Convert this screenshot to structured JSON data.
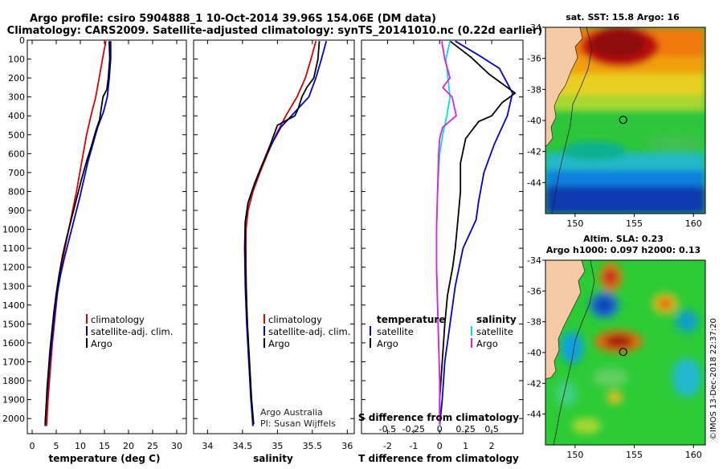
{
  "header": {
    "line1": "Argo profile: csiro 5904888_1 10-Oct-2014 39.96S 154.06E (DM data)",
    "line2": "Climatology: CARS2009. Satellite-adjusted climatology: synTS_20141010.nc (0.22d earlier)"
  },
  "colors": {
    "climatology": "#dd0000",
    "satellite": "#0000cc",
    "argo": "#000000",
    "sat_salinity": "#00e0e0",
    "argo_salinity": "#e020e0",
    "land": "#f5c9a4"
  },
  "chart_data": [
    {
      "type": "line",
      "title": "temperature",
      "xlabel": "temperature (deg C)",
      "ylabel": "",
      "xlim": [
        -1,
        32
      ],
      "ylim": [
        2080,
        0
      ],
      "xticks": [
        0,
        5,
        10,
        15,
        20,
        25,
        30
      ],
      "yticks": [
        0,
        100,
        200,
        300,
        400,
        500,
        600,
        700,
        800,
        900,
        1000,
        1100,
        1200,
        1300,
        1400,
        1500,
        1600,
        1700,
        1800,
        1900,
        2000
      ],
      "legend": [
        "climatology",
        "satellite-adj. clim.",
        "Argo"
      ],
      "series": [
        {
          "name": "climatology",
          "color": "#dd0000",
          "points": [
            [
              15.3,
              5
            ],
            [
              14.6,
              100
            ],
            [
              13.9,
              200
            ],
            [
              13.2,
              300
            ],
            [
              12.2,
              400
            ],
            [
              11.3,
              500
            ],
            [
              10.6,
              600
            ],
            [
              9.9,
              700
            ],
            [
              9.2,
              800
            ],
            [
              8.4,
              900
            ],
            [
              7.6,
              1000
            ],
            [
              6.8,
              1100
            ],
            [
              6.0,
              1200
            ],
            [
              5.4,
              1300
            ],
            [
              5.0,
              1400
            ],
            [
              4.6,
              1500
            ],
            [
              4.2,
              1600
            ],
            [
              3.9,
              1700
            ],
            [
              3.6,
              1800
            ],
            [
              3.3,
              1900
            ],
            [
              3.0,
              2040
            ]
          ]
        },
        {
          "name": "satellite-adj. clim.",
          "color": "#0000cc",
          "points": [
            [
              16.3,
              5
            ],
            [
              16.3,
              100
            ],
            [
              16.0,
              200
            ],
            [
              15.6,
              300
            ],
            [
              14.8,
              380
            ],
            [
              13.6,
              460
            ],
            [
              12.6,
              550
            ],
            [
              11.6,
              640
            ],
            [
              10.7,
              740
            ],
            [
              9.8,
              840
            ],
            [
              8.8,
              940
            ],
            [
              7.8,
              1040
            ],
            [
              6.8,
              1140
            ],
            [
              5.9,
              1240
            ],
            [
              5.2,
              1340
            ],
            [
              4.7,
              1440
            ],
            [
              4.3,
              1540
            ],
            [
              3.9,
              1640
            ],
            [
              3.5,
              1740
            ],
            [
              3.2,
              1840
            ],
            [
              2.9,
              1940
            ],
            [
              2.7,
              2040
            ]
          ]
        },
        {
          "name": "Argo",
          "color": "#000000",
          "points": [
            [
              16.0,
              5
            ],
            [
              16.1,
              100
            ],
            [
              15.8,
              200
            ],
            [
              15.5,
              260
            ],
            [
              14.7,
              300
            ],
            [
              14.4,
              350
            ],
            [
              14.0,
              420
            ],
            [
              13.2,
              480
            ],
            [
              12.3,
              560
            ],
            [
              11.3,
              640
            ],
            [
              10.2,
              740
            ],
            [
              9.2,
              840
            ],
            [
              8.2,
              940
            ],
            [
              7.2,
              1040
            ],
            [
              6.3,
              1140
            ],
            [
              5.6,
              1240
            ],
            [
              5.0,
              1340
            ],
            [
              4.5,
              1440
            ],
            [
              4.1,
              1540
            ],
            [
              3.7,
              1640
            ],
            [
              3.4,
              1740
            ],
            [
              3.1,
              1840
            ],
            [
              2.9,
              1940
            ],
            [
              2.7,
              2030
            ]
          ]
        }
      ]
    },
    {
      "type": "line",
      "title": "salinity",
      "xlabel": "salinity",
      "ylabel": "",
      "xlim": [
        33.8,
        36.1
      ],
      "ylim": [
        2080,
        0
      ],
      "xticks": [
        34,
        34.5,
        35,
        35.5,
        36
      ],
      "xticklabels": [
        "34",
        "34.5",
        "35",
        "35.5",
        "36"
      ],
      "legend": [
        "climatology",
        "satellite-adj. clim.",
        "Argo"
      ],
      "annotation": [
        "Argo Australia",
        "PI: Susan Wijffels"
      ],
      "series": [
        {
          "name": "climatology",
          "color": "#dd0000",
          "points": [
            [
              35.55,
              5
            ],
            [
              35.48,
              100
            ],
            [
              35.4,
              200
            ],
            [
              35.28,
              300
            ],
            [
              35.12,
              400
            ],
            [
              34.98,
              500
            ],
            [
              34.86,
              600
            ],
            [
              34.75,
              700
            ],
            [
              34.65,
              800
            ],
            [
              34.58,
              900
            ],
            [
              34.55,
              1000
            ],
            [
              34.55,
              1200
            ],
            [
              34.56,
              1400
            ],
            [
              34.58,
              1600
            ],
            [
              34.61,
              1800
            ],
            [
              34.65,
              2040
            ]
          ]
        },
        {
          "name": "satellite-adj. clim.",
          "color": "#0000cc",
          "points": [
            [
              35.7,
              5
            ],
            [
              35.63,
              100
            ],
            [
              35.55,
              200
            ],
            [
              35.45,
              300
            ],
            [
              35.25,
              380
            ],
            [
              35.05,
              460
            ],
            [
              34.9,
              560
            ],
            [
              34.78,
              660
            ],
            [
              34.67,
              760
            ],
            [
              34.58,
              860
            ],
            [
              34.54,
              960
            ],
            [
              34.53,
              1100
            ],
            [
              34.54,
              1300
            ],
            [
              34.56,
              1500
            ],
            [
              34.59,
              1700
            ],
            [
              34.62,
              1900
            ],
            [
              34.65,
              2040
            ]
          ]
        },
        {
          "name": "Argo",
          "color": "#000000",
          "points": [
            [
              35.6,
              5
            ],
            [
              35.58,
              100
            ],
            [
              35.52,
              200
            ],
            [
              35.42,
              250
            ],
            [
              35.35,
              300
            ],
            [
              35.3,
              360
            ],
            [
              35.25,
              400
            ],
            [
              35.0,
              450
            ],
            [
              34.9,
              550
            ],
            [
              34.78,
              660
            ],
            [
              34.67,
              760
            ],
            [
              34.58,
              860
            ],
            [
              34.54,
              960
            ],
            [
              34.54,
              1100
            ],
            [
              34.55,
              1300
            ],
            [
              34.57,
              1500
            ],
            [
              34.6,
              1700
            ],
            [
              34.63,
              1900
            ],
            [
              34.66,
              2030
            ]
          ]
        }
      ]
    },
    {
      "type": "line",
      "title": "differences",
      "xlabel": "T difference from climatology",
      "xlabel2": "S difference from climatology",
      "ylabel": "",
      "xlim": [
        -3,
        3.2
      ],
      "ylim": [
        2080,
        0
      ],
      "xticks": [
        -2,
        -1,
        0,
        1,
        2
      ],
      "xticks_s": [
        -0.5,
        -0.25,
        0,
        0.25,
        0.5
      ],
      "xticklabels_s": [
        "-0.5",
        "-0.25",
        "0",
        "0.25",
        "0.5"
      ],
      "s_scale": 4,
      "legend_temperature": {
        "title": "temperature",
        "items": [
          "satellite",
          "Argo"
        ]
      },
      "legend_salinity": {
        "title": "salinity",
        "items": [
          "satellite",
          "Argo"
        ]
      },
      "series": [
        {
          "name": "temperature satellite",
          "color": "#0000cc",
          "points": [
            [
              0.6,
              5
            ],
            [
              1.5,
              80
            ],
            [
              2.3,
              150
            ],
            [
              2.8,
              280
            ],
            [
              2.6,
              400
            ],
            [
              2.1,
              550
            ],
            [
              1.7,
              700
            ],
            [
              1.5,
              850
            ],
            [
              1.4,
              950
            ],
            [
              0.9,
              1100
            ],
            [
              0.6,
              1300
            ],
            [
              0.4,
              1500
            ],
            [
              0.2,
              1700
            ],
            [
              0.1,
              1900
            ],
            [
              0.0,
              2040
            ]
          ]
        },
        {
          "name": "temperature Argo",
          "color": "#000000",
          "points": [
            [
              0.4,
              5
            ],
            [
              1.2,
              90
            ],
            [
              1.9,
              180
            ],
            [
              2.9,
              280
            ],
            [
              2.4,
              330
            ],
            [
              2.0,
              400
            ],
            [
              1.5,
              430
            ],
            [
              1.0,
              520
            ],
            [
              0.8,
              650
            ],
            [
              0.8,
              800
            ],
            [
              0.7,
              950
            ],
            [
              0.6,
              1100
            ],
            [
              0.5,
              1200
            ],
            [
              0.3,
              1350
            ],
            [
              0.2,
              1500
            ],
            [
              0.1,
              1700
            ],
            [
              0.0,
              1900
            ],
            [
              0.0,
              2030
            ]
          ]
        },
        {
          "name": "salinity satellite",
          "color": "#00e0e0",
          "points": [
            [
              0.1,
              5
            ],
            [
              0.06,
              100
            ],
            [
              0.08,
              200
            ],
            [
              0.1,
              300
            ],
            [
              0.07,
              400
            ],
            [
              0.03,
              500
            ],
            [
              0.0,
              600
            ],
            [
              -0.02,
              800
            ],
            [
              -0.03,
              1000
            ],
            [
              -0.03,
              1200
            ],
            [
              -0.02,
              1400
            ],
            [
              -0.01,
              1600
            ],
            [
              0.0,
              1800
            ],
            [
              0.0,
              2040
            ]
          ]
        },
        {
          "name": "salinity Argo",
          "color": "#e020e0",
          "points": [
            [
              0.02,
              5
            ],
            [
              0.05,
              100
            ],
            [
              0.1,
              200
            ],
            [
              0.03,
              250
            ],
            [
              0.12,
              300
            ],
            [
              0.16,
              400
            ],
            [
              0.03,
              460
            ],
            [
              0.0,
              520
            ],
            [
              -0.01,
              600
            ],
            [
              -0.02,
              800
            ],
            [
              -0.03,
              1000
            ],
            [
              -0.03,
              1200
            ],
            [
              -0.02,
              1400
            ],
            [
              -0.01,
              1600
            ],
            [
              0.0,
              1800
            ],
            [
              0.0,
              2030
            ]
          ]
        }
      ]
    },
    {
      "type": "heatmap",
      "title": "sat. SST: 15.8  Argo: 16",
      "xlim": [
        147.5,
        161
      ],
      "ylim": [
        -46,
        -34
      ],
      "xticks": [
        150,
        155,
        160
      ],
      "yticks": [
        -34,
        -36,
        -38,
        -40,
        -42,
        -44
      ],
      "marker": {
        "lon": 154.06,
        "lat": -39.96
      }
    },
    {
      "type": "heatmap",
      "title": "Altim. SLA: 0.23",
      "subtitle": "Argo h1000: 0.097 h2000: 0.13",
      "xlim": [
        147.5,
        161
      ],
      "ylim": [
        -46,
        -34
      ],
      "xticks": [
        150,
        155,
        160
      ],
      "yticks": [
        -34,
        -36,
        -38,
        -40,
        -42,
        -44
      ],
      "marker": {
        "lon": 154.06,
        "lat": -39.96
      }
    }
  ],
  "stamp": "©IMOS 13-Dec-2018 22:37:20"
}
